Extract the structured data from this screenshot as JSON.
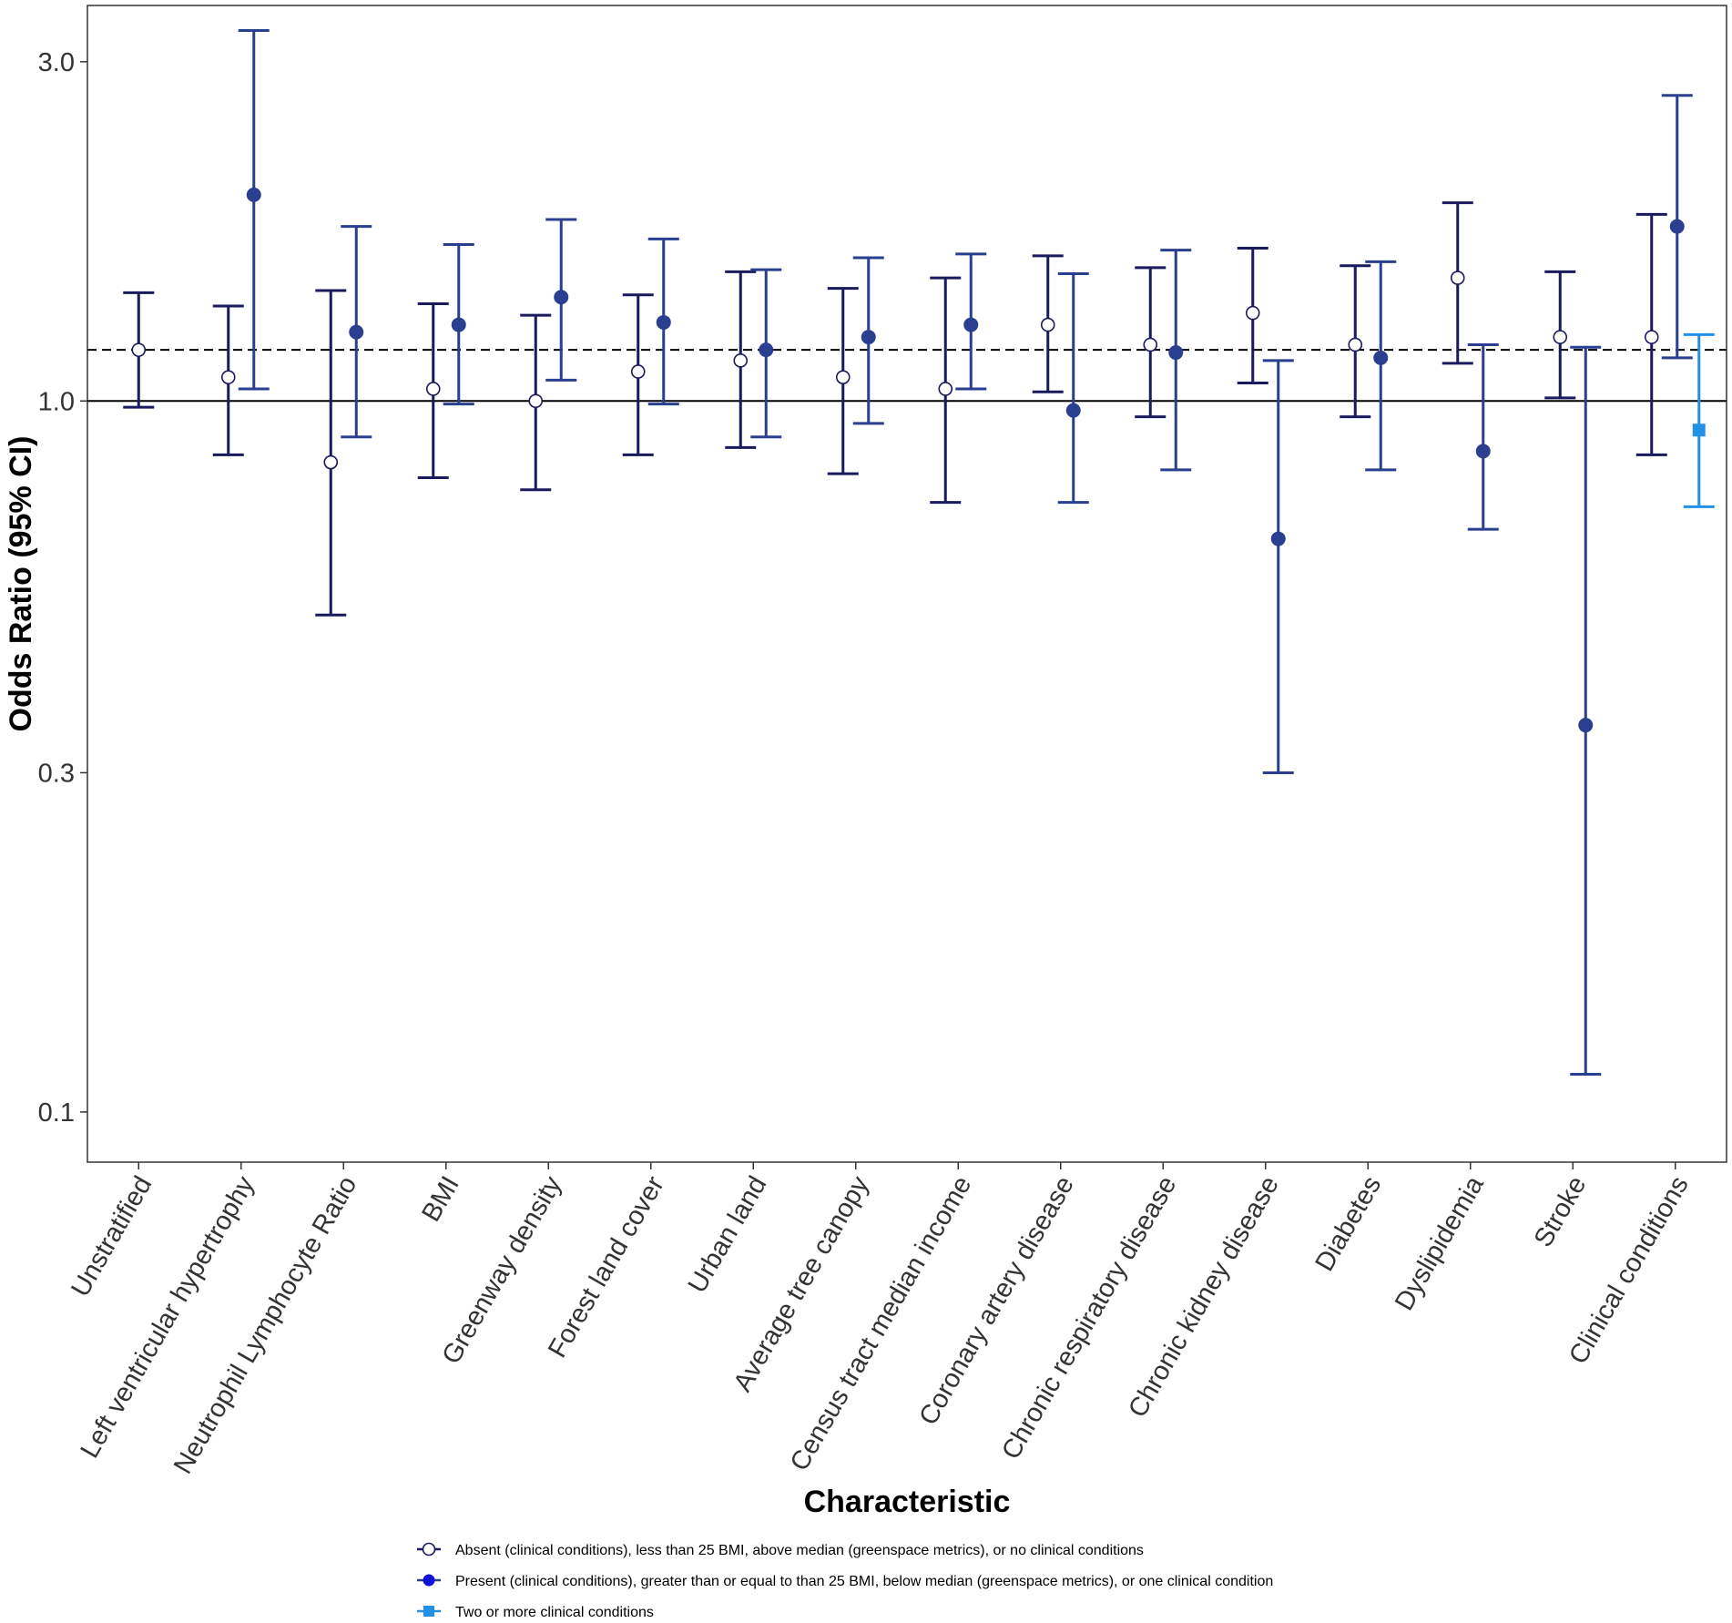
{
  "chart_data": {
    "type": "errorbar",
    "title": "",
    "xlabel": "Characteristic",
    "ylabel": "Odds Ratio (95% CI)",
    "yscale": "log",
    "ylim": [
      0.085,
      3.6
    ],
    "yticks": [
      0.1,
      0.3,
      1.0,
      3.0
    ],
    "ytick_labels": [
      "0.1",
      "0.3",
      "1.0",
      "3.0"
    ],
    "reference_lines": {
      "solid": 1.0,
      "dashed": 1.18
    },
    "categories": [
      "Unstratified",
      "Left ventricular hypertrophy",
      "Neutrophil Lymphocyte Ratio",
      "BMI",
      "Greenway density",
      "Forest land cover",
      "Urban land",
      "Average tree canopy",
      "Census tract median income",
      "Coronary artery disease",
      "Chronic respiratory disease",
      "Chronic kidney disease",
      "Diabetes",
      "Dyslipidemia",
      "Stroke",
      "Clinical conditions"
    ],
    "series": [
      {
        "name": "Absent (clinical conditions), less than 25 BMI, above median (greenspace metrics), or no clinical conditions",
        "color": "#1a1a5e",
        "marker": "open-circle",
        "points": [
          {
            "category": "Unstratified",
            "or": 1.18,
            "lower": 0.98,
            "upper": 1.42
          },
          {
            "category": "Left ventricular hypertrophy",
            "or": 1.08,
            "lower": 0.84,
            "upper": 1.36
          },
          {
            "category": "Neutrophil Lymphocyte Ratio",
            "or": 0.82,
            "lower": 0.5,
            "upper": 1.43
          },
          {
            "category": "BMI",
            "or": 1.04,
            "lower": 0.78,
            "upper": 1.37
          },
          {
            "category": "Greenway density",
            "or": 1.0,
            "lower": 0.75,
            "upper": 1.32
          },
          {
            "category": "Forest land cover",
            "or": 1.1,
            "lower": 0.84,
            "upper": 1.41
          },
          {
            "category": "Urban land",
            "or": 1.14,
            "lower": 0.86,
            "upper": 1.52
          },
          {
            "category": "Average tree canopy",
            "or": 1.08,
            "lower": 0.79,
            "upper": 1.44
          },
          {
            "category": "Census tract median income",
            "or": 1.04,
            "lower": 0.72,
            "upper": 1.49
          },
          {
            "category": "Coronary artery disease",
            "or": 1.28,
            "lower": 1.03,
            "upper": 1.6
          },
          {
            "category": "Chronic respiratory disease",
            "or": 1.2,
            "lower": 0.95,
            "upper": 1.54
          },
          {
            "category": "Chronic kidney disease",
            "or": 1.33,
            "lower": 1.06,
            "upper": 1.64
          },
          {
            "category": "Diabetes",
            "or": 1.2,
            "lower": 0.95,
            "upper": 1.55
          },
          {
            "category": "Dyslipidemia",
            "or": 1.49,
            "lower": 1.13,
            "upper": 1.9
          },
          {
            "category": "Stroke",
            "or": 1.23,
            "lower": 1.01,
            "upper": 1.52
          },
          {
            "category": "Clinical conditions",
            "or": 1.23,
            "lower": 0.84,
            "upper": 1.83
          }
        ]
      },
      {
        "name": "Present (clinical conditions), greater than or equal to than 25 BMI, below median (greenspace metrics), or one clinical condition",
        "color": "#2a3f8f",
        "marker": "filled-circle",
        "points": [
          {
            "category": "Left ventricular hypertrophy",
            "or": 1.95,
            "lower": 1.04,
            "upper": 3.32
          },
          {
            "category": "Neutrophil Lymphocyte Ratio",
            "or": 1.25,
            "lower": 0.89,
            "upper": 1.76
          },
          {
            "category": "BMI",
            "or": 1.28,
            "lower": 0.99,
            "upper": 1.66
          },
          {
            "category": "Greenway density",
            "or": 1.4,
            "lower": 1.07,
            "upper": 1.8
          },
          {
            "category": "Forest land cover",
            "or": 1.29,
            "lower": 0.99,
            "upper": 1.69
          },
          {
            "category": "Urban land",
            "or": 1.18,
            "lower": 0.89,
            "upper": 1.53
          },
          {
            "category": "Average tree canopy",
            "or": 1.23,
            "lower": 0.93,
            "upper": 1.59
          },
          {
            "category": "Census tract median income",
            "or": 1.28,
            "lower": 1.04,
            "upper": 1.61
          },
          {
            "category": "Coronary artery disease",
            "or": 0.97,
            "lower": 0.72,
            "upper": 1.51
          },
          {
            "category": "Chronic respiratory disease",
            "or": 1.17,
            "lower": 0.8,
            "upper": 1.63
          },
          {
            "category": "Chronic kidney disease",
            "or": 0.64,
            "lower": 0.3,
            "upper": 1.14
          },
          {
            "category": "Diabetes",
            "or": 1.15,
            "lower": 0.8,
            "upper": 1.57
          },
          {
            "category": "Dyslipidemia",
            "or": 0.85,
            "lower": 0.66,
            "upper": 1.2
          },
          {
            "category": "Stroke",
            "or": 0.35,
            "lower": 0.113,
            "upper": 1.19
          },
          {
            "category": "Clinical conditions",
            "or": 1.76,
            "lower": 1.15,
            "upper": 2.69
          }
        ]
      },
      {
        "name": "Two or more clinical conditions",
        "color": "#2390e8",
        "marker": "filled-square",
        "points": [
          {
            "category": "Clinical conditions",
            "or": 0.91,
            "lower": 0.71,
            "upper": 1.24
          }
        ]
      }
    ],
    "legend_position": "bottom"
  }
}
